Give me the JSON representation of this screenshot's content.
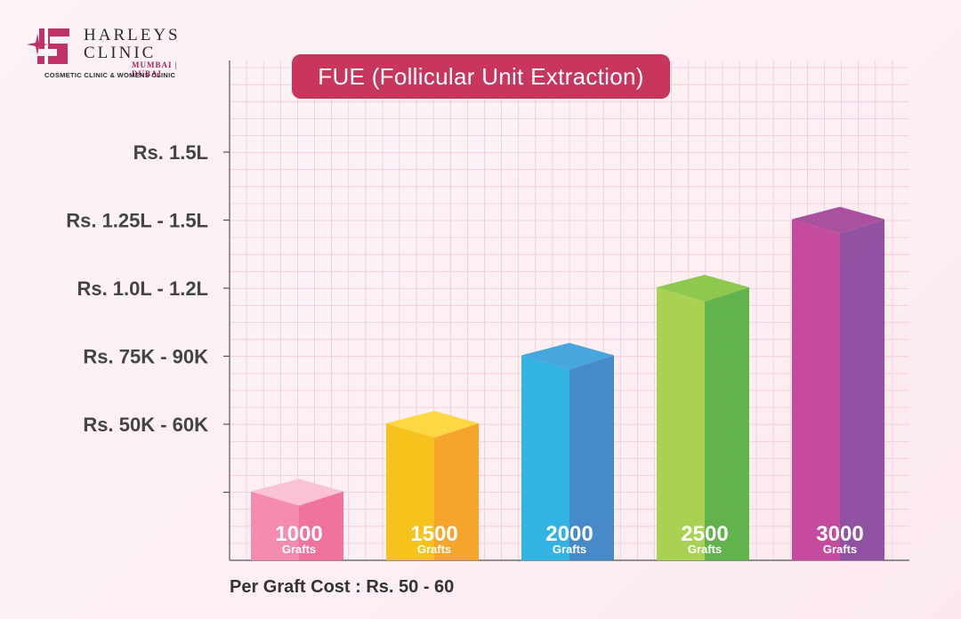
{
  "brand": {
    "name_line1": "HARLEYS",
    "name_line2": "CLINIC",
    "city": "MUMBAI | DUBAI",
    "tagline": "COSMETIC CLINIC & WOMENS CLINIC"
  },
  "caption": "Per Graft Cost : Rs. 50 - 60",
  "chart_data": {
    "type": "bar",
    "title": "FUE (Follicular Unit Extraction)",
    "xlabel": "",
    "ylabel": "",
    "y_ticks": [
      "",
      "Rs. 50K - 60K",
      "Rs. 75K - 90K",
      "Rs. 1.0L - 1.2L",
      "Rs. 1.25L - 1.5L",
      "Rs. 1.5L"
    ],
    "ylim": [
      0,
      6
    ],
    "grid": true,
    "bars": [
      {
        "value": 1,
        "label_number": "1000",
        "label_unit": "Grafts",
        "top": "#f7a9c3",
        "front": "#f58cb0",
        "side": "#ee6c97",
        "cap": "#fbc2d4"
      },
      {
        "value": 2,
        "label_number": "1500",
        "label_unit": "Grafts",
        "top": "#fbd21b",
        "front": "#f8c21c",
        "side": "#f5a021",
        "cap": "#fdd845"
      },
      {
        "value": 3,
        "label_number": "2000",
        "label_unit": "Grafts",
        "top": "#2fb9e6",
        "front": "#33b2e4",
        "side": "#3c85c6",
        "cap": "#47a7dc"
      },
      {
        "value": 4,
        "label_number": "2500",
        "label_unit": "Grafts",
        "top": "#b7d95a",
        "front": "#a9d253",
        "side": "#5aaf45",
        "cap": "#8fc84f"
      },
      {
        "value": 5,
        "label_number": "3000",
        "label_unit": "Grafts",
        "top": "#c94aa0",
        "front": "#c54b9f",
        "side": "#8c4a9e",
        "cap": "#a9509f"
      }
    ]
  }
}
